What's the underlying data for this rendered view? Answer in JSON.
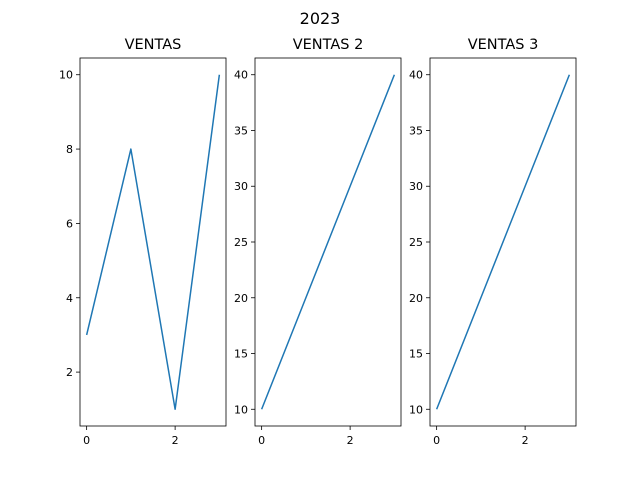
{
  "figure": {
    "suptitle": "2023"
  },
  "chart_data": [
    {
      "type": "line",
      "title": "VENTAS",
      "xlabel": "",
      "ylabel": "",
      "x": [
        0,
        1,
        2,
        3
      ],
      "series": [
        {
          "values": [
            3,
            8,
            1,
            10
          ],
          "color": "#1f77b4"
        }
      ],
      "xlim": [
        -0.15,
        3.15
      ],
      "ylim": [
        0.55,
        10.45
      ],
      "xticks": [
        0,
        2
      ],
      "yticks": [
        2,
        4,
        6,
        8,
        10
      ],
      "grid": false
    },
    {
      "type": "line",
      "title": "VENTAS 2",
      "xlabel": "",
      "ylabel": "",
      "x": [
        0,
        1,
        2,
        3
      ],
      "series": [
        {
          "values": [
            10,
            20,
            30,
            40
          ],
          "color": "#1f77b4"
        }
      ],
      "xlim": [
        -0.15,
        3.15
      ],
      "ylim": [
        8.5,
        41.5
      ],
      "xticks": [
        0,
        2
      ],
      "yticks": [
        10,
        15,
        20,
        25,
        30,
        35,
        40
      ],
      "grid": false
    },
    {
      "type": "line",
      "title": "VENTAS 3",
      "xlabel": "",
      "ylabel": "",
      "x": [
        0,
        1,
        2,
        3
      ],
      "series": [
        {
          "values": [
            10,
            20,
            30,
            40
          ],
          "color": "#1f77b4"
        }
      ],
      "xlim": [
        -0.15,
        3.15
      ],
      "ylim": [
        8.5,
        41.5
      ],
      "xticks": [
        0,
        2
      ],
      "yticks": [
        10,
        15,
        20,
        25,
        30,
        35,
        40
      ],
      "grid": false
    }
  ]
}
